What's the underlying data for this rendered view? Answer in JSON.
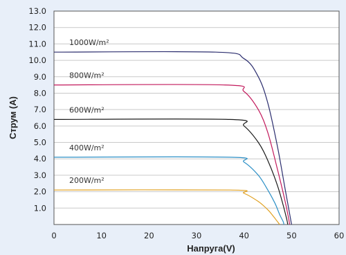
{
  "chart_data": {
    "type": "line",
    "xlabel": "Напруга(V)",
    "ylabel": "Струм (A)",
    "xlim": [
      0,
      60
    ],
    "ylim": [
      0,
      13
    ],
    "x_ticks": [
      "0",
      "10",
      "20",
      "30",
      "40",
      "50",
      "60"
    ],
    "y_ticks": [
      "1.0",
      "2.0",
      "3.0",
      "4.0",
      "5.0",
      "6.0",
      "7.0",
      "8.0",
      "9.0",
      "10.0",
      "11.0",
      "12.0",
      "13.0"
    ],
    "grid": "horizontal",
    "series": [
      {
        "name": "1000W/m²",
        "color": "#2b2d6e",
        "x": [
          0,
          34,
          40,
          43,
          45,
          47,
          48.5,
          49.5,
          50
        ],
        "y": [
          10.5,
          10.5,
          10.1,
          9.0,
          7.4,
          4.8,
          2.4,
          0.8,
          0
        ]
      },
      {
        "name": "800W/m²",
        "color": "#c2185b",
        "x": [
          0,
          36,
          40,
          43,
          45,
          47,
          48.5,
          49.3,
          49.6
        ],
        "y": [
          8.5,
          8.5,
          8.1,
          7.0,
          5.6,
          3.4,
          1.6,
          0.5,
          0
        ]
      },
      {
        "name": "600W/m²",
        "color": "#1a1a1a",
        "x": [
          0,
          37,
          40,
          43,
          45,
          47,
          48.3,
          49,
          49.2
        ],
        "y": [
          6.4,
          6.4,
          6.0,
          5.0,
          3.9,
          2.4,
          1.1,
          0.3,
          0
        ]
      },
      {
        "name": "400W/m²",
        "color": "#2b8fc6",
        "x": [
          0,
          37,
          40,
          43,
          45,
          46.5,
          47.5,
          48.2,
          48.4
        ],
        "y": [
          4.1,
          4.1,
          3.8,
          3.0,
          2.1,
          1.3,
          0.6,
          0.2,
          0
        ]
      },
      {
        "name": "200W/m²",
        "color": "#e0a020",
        "x": [
          0,
          37,
          40,
          43,
          45,
          46.3,
          47.1,
          47.5
        ],
        "y": [
          2.1,
          2.1,
          1.9,
          1.4,
          0.9,
          0.45,
          0.15,
          0
        ]
      }
    ]
  }
}
